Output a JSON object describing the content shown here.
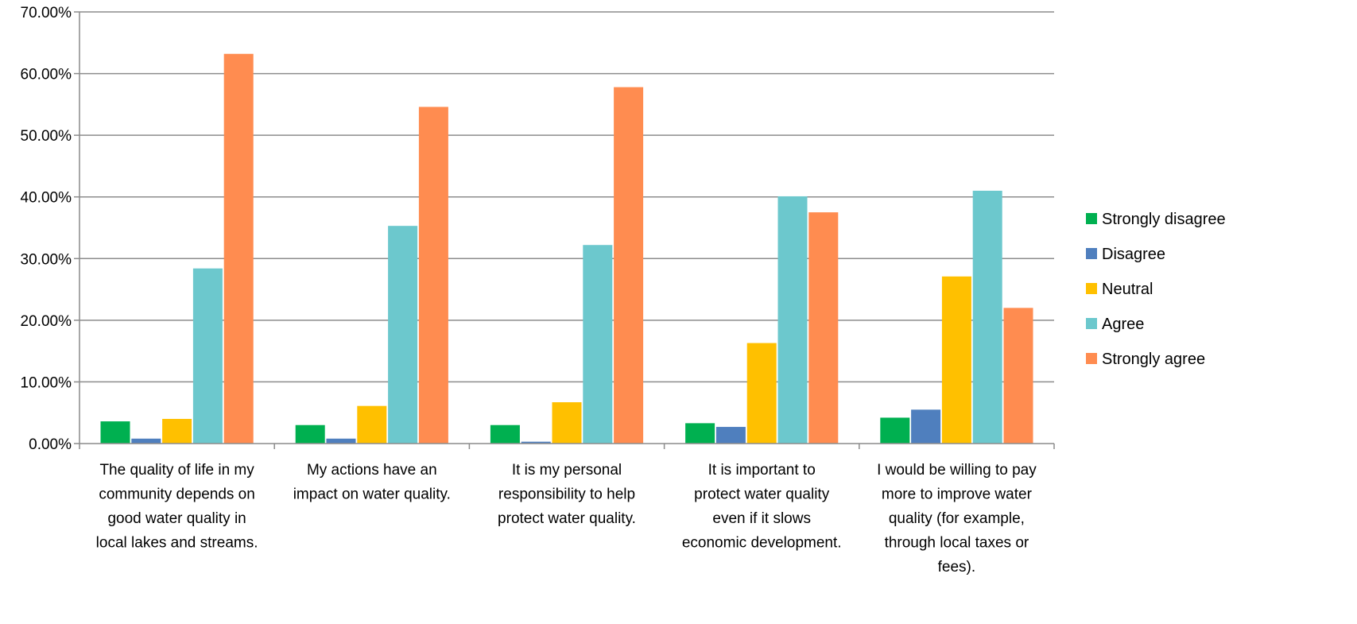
{
  "chart_data": {
    "type": "bar",
    "title": "",
    "xlabel": "",
    "ylabel": "",
    "ylim": [
      0,
      70
    ],
    "y_ticks": [
      "0.00%",
      "10.00%",
      "20.00%",
      "30.00%",
      "40.00%",
      "50.00%",
      "60.00%",
      "70.00%"
    ],
    "grid": true,
    "legend_position": "right",
    "categories": [
      [
        "The quality of life in my",
        "community depends on",
        "good water quality in",
        "local lakes and streams."
      ],
      [
        "My actions have an",
        "impact on water quality."
      ],
      [
        "It is my personal",
        "responsibility to help",
        "protect water quality."
      ],
      [
        "It is important to",
        "protect water quality",
        "even if it slows",
        "economic development."
      ],
      [
        "I would be willing to pay",
        "more to improve water",
        "quality (for example,",
        "through local taxes or",
        "fees)."
      ]
    ],
    "series": [
      {
        "name": "Strongly disagree",
        "color": "#00B050",
        "values": [
          3.6,
          3.0,
          3.0,
          3.3,
          4.2
        ]
      },
      {
        "name": "Disagree",
        "color": "#4F7FBE",
        "values": [
          0.8,
          0.8,
          0.3,
          2.7,
          5.5
        ]
      },
      {
        "name": "Neutral",
        "color": "#FFC000",
        "values": [
          4.0,
          6.1,
          6.7,
          16.3,
          27.1
        ]
      },
      {
        "name": "Agree",
        "color": "#6CC8CD",
        "values": [
          28.4,
          35.3,
          32.2,
          40.1,
          41.0
        ]
      },
      {
        "name": "Strongly agree",
        "color": "#FF8C50",
        "values": [
          63.2,
          54.6,
          57.8,
          37.5,
          22.0
        ]
      }
    ]
  }
}
